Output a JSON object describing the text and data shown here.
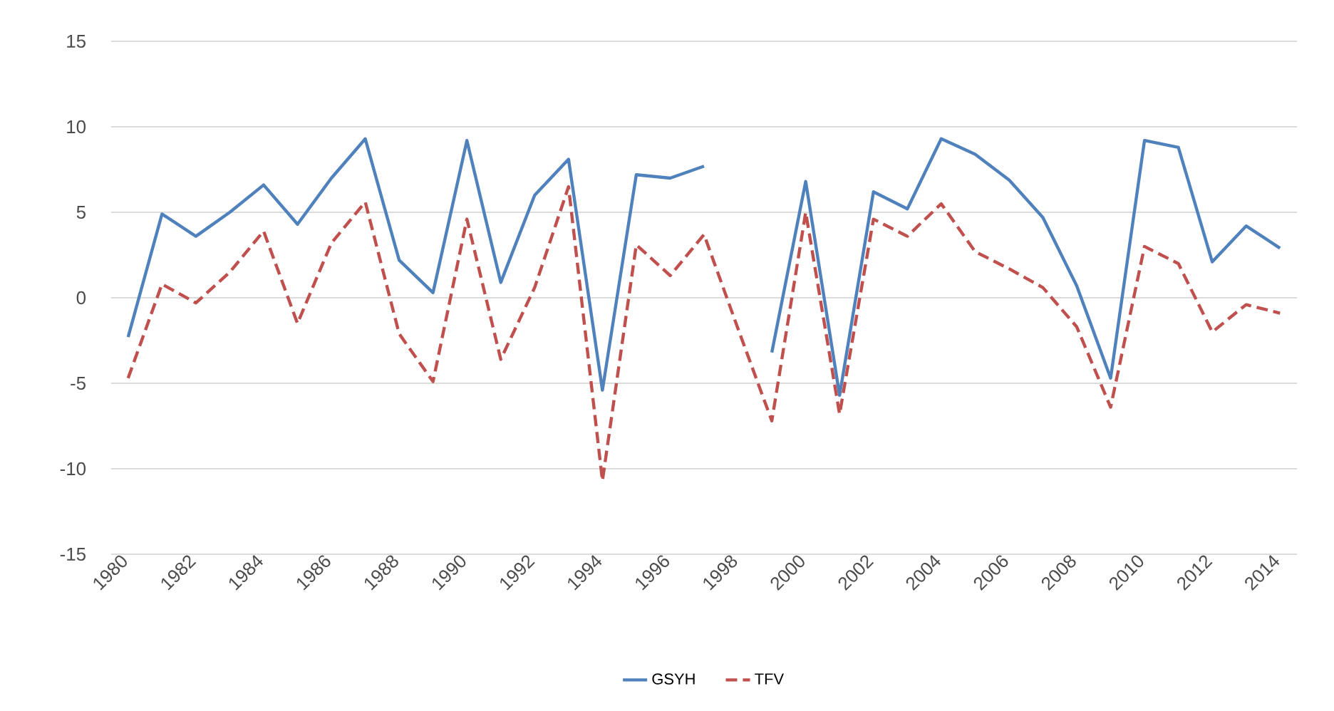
{
  "chart_data": {
    "type": "line",
    "categories": [
      "1980",
      null,
      "1982",
      null,
      "1984",
      null,
      "1986",
      null,
      "1988",
      null,
      "1990",
      null,
      "1992",
      null,
      "1994",
      null,
      "1996",
      null,
      "1998",
      null,
      "2000",
      null,
      "2002",
      null,
      "2004",
      null,
      "2006",
      null,
      "2008",
      null,
      "2010",
      null,
      "2012",
      null,
      "2014"
    ],
    "series": [
      {
        "name": "GSYH",
        "color": "#4f81bd",
        "line_style": "solid",
        "values": [
          -2.3,
          4.9,
          3.6,
          5.0,
          6.6,
          4.3,
          7.0,
          9.3,
          2.2,
          0.3,
          9.2,
          0.9,
          6.0,
          8.1,
          -5.4,
          7.2,
          7.0,
          7.7,
          null,
          -3.2,
          6.8,
          -5.7,
          6.2,
          5.2,
          9.3,
          8.4,
          6.9,
          4.7,
          0.7,
          -4.7,
          9.2,
          8.8,
          2.1,
          4.2,
          2.9
        ]
      },
      {
        "name": "TFV",
        "color": "#c0504d",
        "line_style": "dashed",
        "values": [
          -4.7,
          0.8,
          -0.3,
          1.5,
          3.9,
          -1.5,
          3.2,
          5.6,
          -2.1,
          -4.9,
          4.6,
          -3.6,
          0.6,
          6.5,
          -10.7,
          3.1,
          1.3,
          3.7,
          -1.8,
          -7.2,
          5.0,
          -6.8,
          4.6,
          3.6,
          5.5,
          2.7,
          1.7,
          0.6,
          -1.7,
          -6.4,
          3.0,
          2.0,
          -2.0,
          -0.4,
          -0.9
        ]
      }
    ],
    "ylim": [
      -15,
      15
    ],
    "yticks": [
      -15,
      -10,
      -5,
      0,
      5,
      10,
      15
    ],
    "grid": "y",
    "legend": "bottom"
  }
}
